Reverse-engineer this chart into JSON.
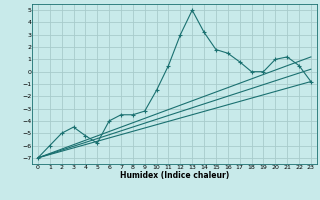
{
  "xlabel": "Humidex (Indice chaleur)",
  "ylabel": "",
  "xlim": [
    -0.5,
    23.5
  ],
  "ylim": [
    -7.5,
    5.5
  ],
  "xticks": [
    0,
    1,
    2,
    3,
    4,
    5,
    6,
    7,
    8,
    9,
    10,
    11,
    12,
    13,
    14,
    15,
    16,
    17,
    18,
    19,
    20,
    21,
    22,
    23
  ],
  "yticks": [
    -7,
    -6,
    -5,
    -4,
    -3,
    -2,
    -1,
    0,
    1,
    2,
    3,
    4,
    5
  ],
  "bg_color": "#c8eaea",
  "grid_color": "#a8cccc",
  "line_color": "#1a7070",
  "line1_x": [
    0,
    1,
    2,
    3,
    4,
    5,
    6,
    7,
    8,
    9,
    10,
    11,
    12,
    13,
    14,
    15,
    16,
    17,
    18,
    19,
    20,
    21,
    22,
    23
  ],
  "line1_y": [
    -7.0,
    -6.0,
    -5.0,
    -4.5,
    -5.2,
    -5.8,
    -4.0,
    -3.5,
    -3.5,
    -3.2,
    -1.5,
    0.5,
    3.0,
    5.0,
    3.2,
    1.8,
    1.5,
    0.8,
    0.0,
    0.0,
    1.0,
    1.2,
    0.5,
    -0.8
  ],
  "line2_x": [
    0,
    23
  ],
  "line2_y": [
    -7.0,
    -0.8
  ],
  "line3_x": [
    0,
    23
  ],
  "line3_y": [
    -7.0,
    1.2
  ],
  "line4_x": [
    0,
    23
  ],
  "line4_y": [
    -7.0,
    0.2
  ]
}
